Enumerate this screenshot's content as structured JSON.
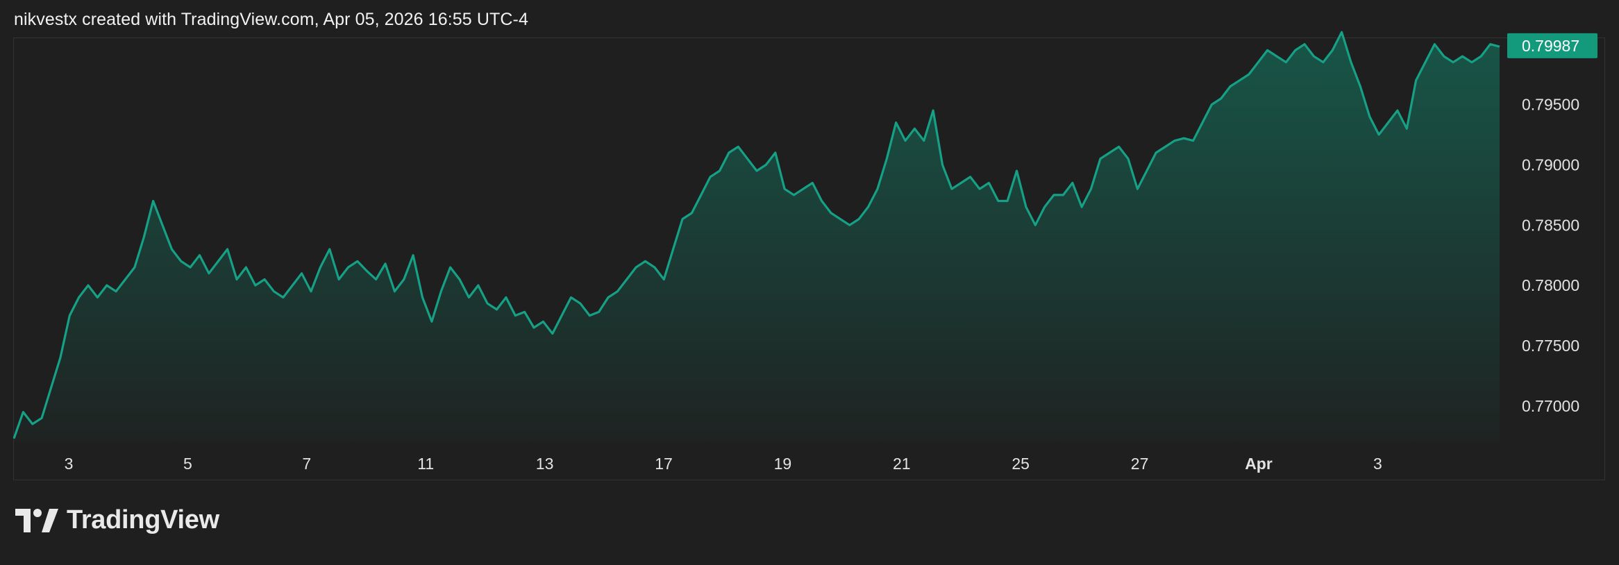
{
  "caption": "nikvestx created with TradingView.com, Apr 05, 2026 16:55 UTC-4",
  "brand": "TradingView",
  "colors": {
    "background": "#1f1f1f",
    "line": "#16a085",
    "price_badge": "#139a7d",
    "text": "#e3e3e3"
  },
  "chart_data": {
    "type": "area",
    "title": "",
    "xlabel": "",
    "ylabel": "",
    "last_price": "0.79987",
    "ylim": [
      0.767,
      0.8005
    ],
    "y_ticks": [
      "0.77000",
      "0.77500",
      "0.78000",
      "0.78500",
      "0.79000",
      "0.79500"
    ],
    "x_ticks": [
      "3",
      "5",
      "7",
      "11",
      "13",
      "17",
      "19",
      "21",
      "25",
      "27",
      "Apr",
      "3"
    ],
    "x_ticks_bold": [
      false,
      false,
      false,
      false,
      false,
      false,
      false,
      false,
      false,
      false,
      true,
      false
    ],
    "grid": false,
    "series": [
      {
        "values": [
          0.7673,
          0.7695,
          0.7685,
          0.769,
          0.7715,
          0.774,
          0.7775,
          0.779,
          0.78,
          0.779,
          0.78,
          0.7795,
          0.7805,
          0.7815,
          0.784,
          0.787,
          0.785,
          0.783,
          0.782,
          0.7815,
          0.7825,
          0.781,
          0.782,
          0.783,
          0.7805,
          0.7815,
          0.78,
          0.7805,
          0.7795,
          0.779,
          0.78,
          0.781,
          0.7795,
          0.7815,
          0.783,
          0.7805,
          0.7815,
          0.782,
          0.7812,
          0.7805,
          0.7818,
          0.7795,
          0.7805,
          0.7825,
          0.779,
          0.777,
          0.7795,
          0.7815,
          0.7805,
          0.779,
          0.78,
          0.7785,
          0.778,
          0.779,
          0.7775,
          0.7778,
          0.7765,
          0.777,
          0.776,
          0.7775,
          0.779,
          0.7785,
          0.7775,
          0.7778,
          0.779,
          0.7795,
          0.7805,
          0.7815,
          0.782,
          0.7815,
          0.7805,
          0.783,
          0.7855,
          0.786,
          0.7875,
          0.789,
          0.7895,
          0.791,
          0.7915,
          0.7905,
          0.7895,
          0.79,
          0.791,
          0.788,
          0.7875,
          0.788,
          0.7885,
          0.787,
          0.786,
          0.7855,
          0.785,
          0.7855,
          0.7865,
          0.788,
          0.7905,
          0.7935,
          0.792,
          0.793,
          0.792,
          0.7945,
          0.79,
          0.788,
          0.7885,
          0.789,
          0.788,
          0.7885,
          0.787,
          0.787,
          0.7895,
          0.7865,
          0.785,
          0.7865,
          0.7875,
          0.7875,
          0.7885,
          0.7865,
          0.788,
          0.7905,
          0.791,
          0.7915,
          0.7905,
          0.788,
          0.7895,
          0.791,
          0.7915,
          0.792,
          0.7922,
          0.792,
          0.7935,
          0.795,
          0.7955,
          0.7965,
          0.797,
          0.7975,
          0.7985,
          0.7995,
          0.799,
          0.7985,
          0.7995,
          0.8,
          0.799,
          0.7985,
          0.7995,
          0.801,
          0.7985,
          0.7965,
          0.794,
          0.7925,
          0.7935,
          0.7945,
          0.793,
          0.797,
          0.7985,
          0.8,
          0.799,
          0.7985,
          0.799,
          0.7985,
          0.799,
          0.8,
          0.7998
        ]
      }
    ]
  }
}
